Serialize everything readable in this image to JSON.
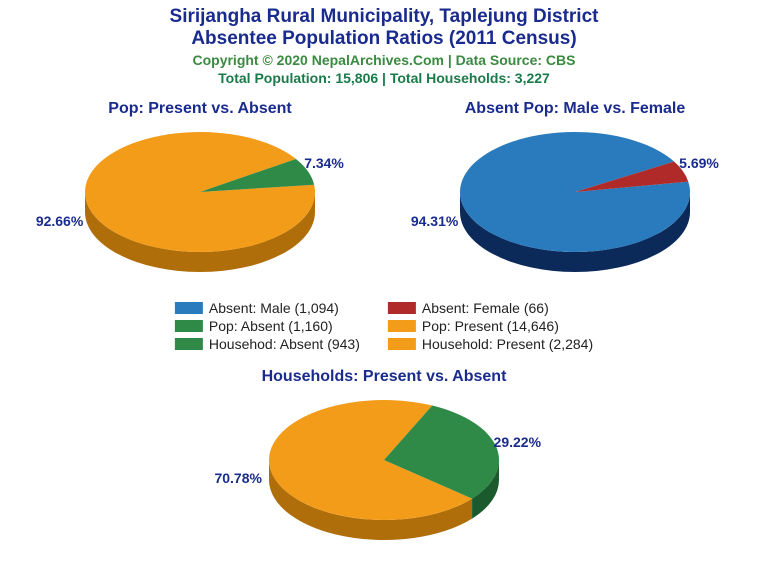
{
  "header": {
    "title_line1": "Sirijangha Rural Municipality, Taplejung District",
    "title_line2": "Absentee Population Ratios (2011 Census)",
    "title_color": "#1a2b8e",
    "title_fontsize": 19,
    "copyright": "Copyright © 2020 NepalArchives.Com | Data Source: CBS",
    "copyright_color": "#3a8a3f",
    "copyright_fontsize": 14,
    "totals": "Total Population: 15,806 | Total Households: 3,227",
    "totals_color": "#1b7a4a",
    "totals_fontsize": 14
  },
  "colors": {
    "blue": "#2a7bbd",
    "blue_dark": "#0b2a5a",
    "red": "#b02a2a",
    "red_dark": "#6d1414",
    "green": "#2f8a47",
    "green_dark": "#1a5a2d",
    "orange": "#f39c1a",
    "orange_dark": "#b06e0a",
    "label": "#1a2b8e"
  },
  "chart1": {
    "title": "Pop: Present vs. Absent",
    "title_color": "#1a2b8e",
    "title_fontsize": 16,
    "slices": [
      {
        "label": "92.66%",
        "pct": 92.66,
        "color_key": "orange"
      },
      {
        "label": "7.34%",
        "pct": 7.34,
        "color_key": "green"
      }
    ],
    "rotation_deg": -7
  },
  "chart2": {
    "title": "Absent Pop: Male vs. Female",
    "title_color": "#1a2b8e",
    "title_fontsize": 16,
    "slices": [
      {
        "label": "94.31%",
        "pct": 94.31,
        "color_key": "blue"
      },
      {
        "label": "5.69%",
        "pct": 5.69,
        "color_key": "red"
      }
    ],
    "rotation_deg": -10
  },
  "chart3": {
    "title": "Households: Present vs. Absent",
    "title_color": "#1a2b8e",
    "title_fontsize": 16,
    "slices": [
      {
        "label": "70.78%",
        "pct": 70.78,
        "color_key": "orange"
      },
      {
        "label": "29.22%",
        "pct": 29.22,
        "color_key": "green"
      }
    ],
    "rotation_deg": 40
  },
  "legend": {
    "fontsize": 14,
    "text_color": "#222222",
    "items": [
      {
        "swatch_key": "blue",
        "text": "Absent: Male (1,094)"
      },
      {
        "swatch_key": "red",
        "text": "Absent: Female (66)"
      },
      {
        "swatch_key": "green",
        "text": "Pop: Absent (1,160)"
      },
      {
        "swatch_key": "orange",
        "text": "Pop: Present (14,646)"
      },
      {
        "swatch_key": "green",
        "text": "Househod: Absent (943)"
      },
      {
        "swatch_key": "orange",
        "text": "Household: Present (2,284)"
      }
    ]
  },
  "pie_style": {
    "rx": 115,
    "ry": 60,
    "depth": 20,
    "label_fontsize": 14
  }
}
